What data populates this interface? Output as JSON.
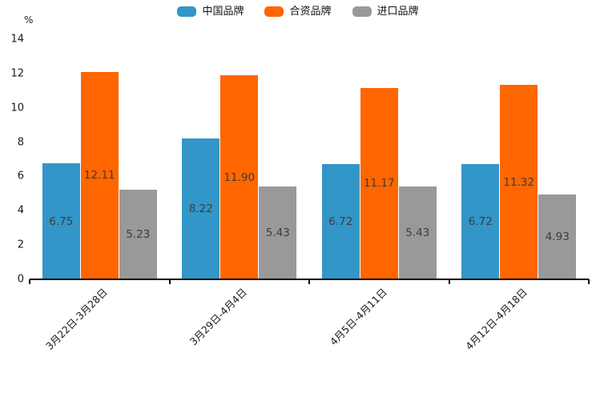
{
  "unit_label": "%",
  "axis_color": "#000000",
  "value_label_color": "#3d3d3d",
  "chart_data": {
    "type": "bar",
    "title": "",
    "categories": [
      "3月22日-3月28日",
      "3月29日-4月4日",
      "4月5日-4月11日",
      "4月12日-4月18日"
    ],
    "series": [
      {
        "name": "中国品牌",
        "color": "#3296C8",
        "values": [
          6.75,
          8.22,
          6.72,
          6.72
        ]
      },
      {
        "name": "合资品牌",
        "color": "#FF6600",
        "values": [
          12.11,
          11.9,
          11.17,
          11.32
        ]
      },
      {
        "name": "进口品牌",
        "color": "#999999",
        "values": [
          5.23,
          5.43,
          5.43,
          4.93
        ]
      }
    ],
    "xlabel": "",
    "ylabel": "%",
    "ylim": [
      0,
      14
    ],
    "ytick_step": 2,
    "grid": false,
    "legend_position": "top",
    "value_labels": true,
    "value_label_decimals": 2
  }
}
